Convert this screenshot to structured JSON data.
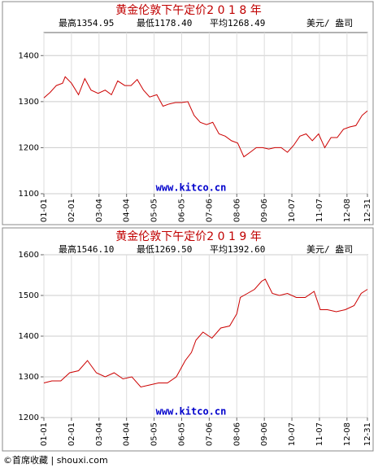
{
  "chart_data": [
    {
      "type": "line",
      "title": "黄金伦敦下午定价2 0 1 8 年",
      "stats": [
        "最高1354.95",
        "最低1178.40",
        "平均1268.49"
      ],
      "unit": "美元/ 盎司",
      "watermark": "www.kitco.cn",
      "x": [
        1,
        8,
        15,
        22,
        25,
        32,
        40,
        47,
        54,
        62,
        70,
        77,
        84,
        92,
        99,
        106,
        113,
        120,
        128,
        135,
        142,
        149,
        156,
        163,
        170,
        177,
        184,
        191,
        198,
        205,
        212,
        219,
        226,
        233,
        240,
        247,
        254,
        261,
        268,
        275,
        282,
        289,
        296,
        303,
        310,
        317,
        324,
        331,
        338,
        345,
        352,
        359,
        365
      ],
      "series": [
        {
          "color": "#cc0000",
          "values": [
            1308,
            1320,
            1335,
            1340,
            1354,
            1340,
            1315,
            1350,
            1325,
            1318,
            1325,
            1315,
            1345,
            1335,
            1335,
            1348,
            1325,
            1310,
            1315,
            1290,
            1295,
            1298,
            1298,
            1300,
            1270,
            1255,
            1250,
            1255,
            1230,
            1225,
            1215,
            1210,
            1180,
            1190,
            1200,
            1200,
            1197,
            1200,
            1200,
            1190,
            1205,
            1225,
            1230,
            1215,
            1230,
            1200,
            1222,
            1222,
            1240,
            1245,
            1248,
            1270,
            1280
          ]
        }
      ],
      "xlim": [
        1,
        365
      ],
      "xticks": [
        {
          "value": 1,
          "label": "01-01"
        },
        {
          "value": 32,
          "label": "02-01"
        },
        {
          "value": 63,
          "label": "03-04"
        },
        {
          "value": 94,
          "label": "04-04"
        },
        {
          "value": 125,
          "label": "05-05"
        },
        {
          "value": 156,
          "label": "06-05"
        },
        {
          "value": 187,
          "label": "07-06"
        },
        {
          "value": 218,
          "label": "08-06"
        },
        {
          "value": 249,
          "label": "09-06"
        },
        {
          "value": 280,
          "label": "10-07"
        },
        {
          "value": 311,
          "label": "11-07"
        },
        {
          "value": 342,
          "label": "12-08"
        },
        {
          "value": 365,
          "label": "12-31"
        }
      ],
      "ylim": [
        1100,
        1450
      ],
      "yticks": [
        1100,
        1200,
        1300,
        1400
      ],
      "grid": true
    },
    {
      "type": "line",
      "title": "黄金伦敦下午定价2 0 1 9 年",
      "stats": [
        "最高1546.10",
        "最低1269.50",
        "平均1392.60"
      ],
      "unit": "美元/ 盎司",
      "watermark": "www.kitco.cn",
      "x": [
        1,
        10,
        20,
        30,
        40,
        50,
        60,
        70,
        80,
        90,
        100,
        110,
        120,
        130,
        140,
        150,
        160,
        167,
        172,
        180,
        190,
        200,
        210,
        218,
        222,
        230,
        238,
        246,
        250,
        258,
        266,
        275,
        285,
        295,
        305,
        312,
        320,
        330,
        340,
        350,
        358,
        365
      ],
      "series": [
        {
          "color": "#cc0000",
          "values": [
            1285,
            1290,
            1290,
            1310,
            1315,
            1340,
            1310,
            1300,
            1310,
            1295,
            1300,
            1275,
            1280,
            1285,
            1285,
            1300,
            1340,
            1360,
            1390,
            1410,
            1395,
            1420,
            1425,
            1455,
            1495,
            1505,
            1515,
            1535,
            1540,
            1505,
            1500,
            1505,
            1495,
            1495,
            1510,
            1465,
            1465,
            1460,
            1465,
            1475,
            1505,
            1515
          ]
        }
      ],
      "xlim": [
        1,
        365
      ],
      "xticks": [
        {
          "value": 1,
          "label": "01-01"
        },
        {
          "value": 32,
          "label": "02-01"
        },
        {
          "value": 63,
          "label": "03-04"
        },
        {
          "value": 94,
          "label": "04-04"
        },
        {
          "value": 125,
          "label": "05-05"
        },
        {
          "value": 156,
          "label": "06-05"
        },
        {
          "value": 187,
          "label": "07-06"
        },
        {
          "value": 218,
          "label": "08-06"
        },
        {
          "value": 249,
          "label": "09-06"
        },
        {
          "value": 280,
          "label": "10-07"
        },
        {
          "value": 311,
          "label": "11-07"
        },
        {
          "value": 342,
          "label": "12-08"
        },
        {
          "value": 365,
          "label": "12-31"
        }
      ],
      "ylim": [
        1200,
        1600
      ],
      "yticks": [
        1200,
        1300,
        1400,
        1500,
        1600
      ],
      "grid": true
    }
  ],
  "footer": "©首席收藏 | shouxi.com"
}
